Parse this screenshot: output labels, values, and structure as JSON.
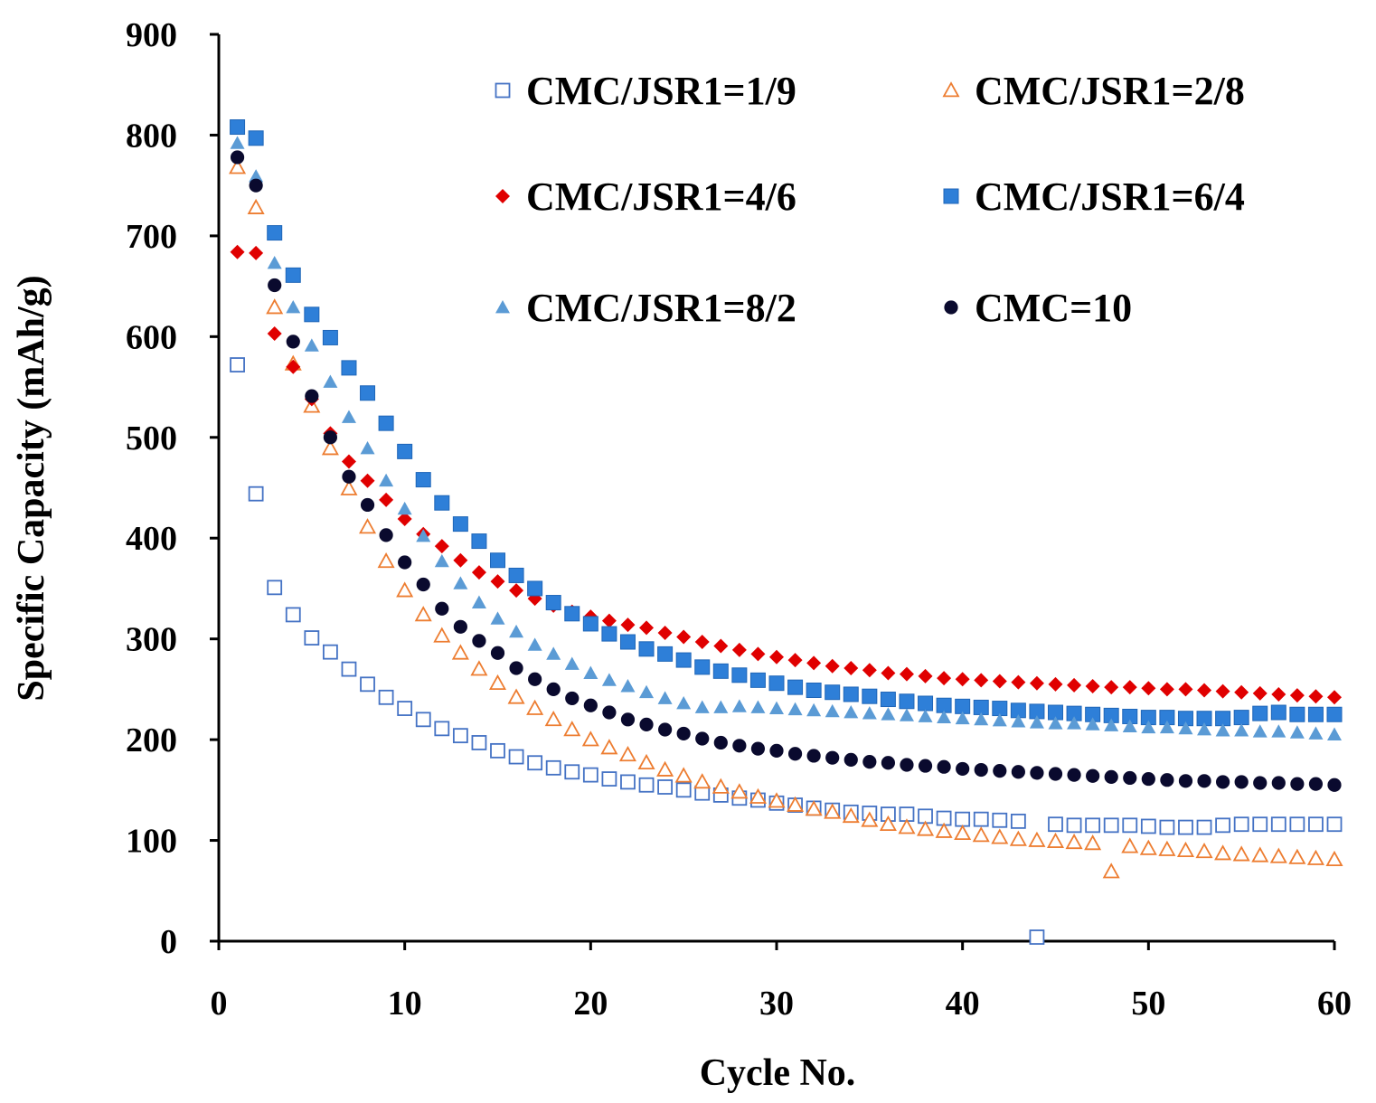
{
  "chart_data": {
    "type": "scatter",
    "title": "",
    "xlabel": "Cycle No.",
    "ylabel": "Specific Capacity (mAh/g)",
    "xlim": [
      0,
      60
    ],
    "ylim": [
      0,
      900
    ],
    "xticks": [
      0,
      10,
      20,
      30,
      40,
      50,
      60
    ],
    "yticks": [
      0,
      100,
      200,
      300,
      400,
      500,
      600,
      700,
      800,
      900
    ],
    "grid": false,
    "legend_position": "top-right",
    "series": [
      {
        "name": "CMC/JSR1=1/9",
        "marker": "square-open",
        "color": "#4472C4",
        "x": [
          1,
          2,
          3,
          4,
          5,
          6,
          7,
          8,
          9,
          10,
          11,
          12,
          13,
          14,
          15,
          16,
          17,
          18,
          19,
          20,
          21,
          22,
          23,
          24,
          25,
          26,
          27,
          28,
          29,
          30,
          31,
          32,
          33,
          34,
          35,
          36,
          37,
          38,
          39,
          40,
          41,
          42,
          43,
          44,
          45,
          46,
          47,
          48,
          49,
          50,
          51,
          52,
          53,
          54,
          55,
          56,
          57,
          58,
          59,
          60
        ],
        "y": [
          572,
          444,
          351,
          324,
          301,
          287,
          270,
          255,
          242,
          231,
          220,
          211,
          204,
          197,
          189,
          183,
          177,
          172,
          168,
          165,
          161,
          158,
          155,
          153,
          150,
          147,
          145,
          142,
          140,
          137,
          135,
          132,
          130,
          128,
          127,
          126,
          126,
          124,
          122,
          121,
          121,
          120,
          119,
          4,
          116,
          115,
          115,
          115,
          115,
          114,
          113,
          113,
          113,
          115,
          116,
          116,
          116,
          116,
          116,
          116
        ]
      },
      {
        "name": "CMC/JSR1=2/8",
        "marker": "triangle-open",
        "color": "#ED7D31",
        "x": [
          1,
          2,
          3,
          4,
          5,
          6,
          7,
          8,
          9,
          10,
          11,
          12,
          13,
          14,
          15,
          16,
          17,
          18,
          19,
          20,
          21,
          22,
          23,
          24,
          25,
          26,
          27,
          28,
          29,
          30,
          31,
          32,
          33,
          34,
          35,
          36,
          37,
          38,
          39,
          40,
          41,
          42,
          43,
          44,
          45,
          46,
          47,
          48,
          49,
          50,
          51,
          52,
          53,
          54,
          55,
          56,
          57,
          58,
          59,
          60
        ],
        "y": [
          768,
          728,
          629,
          573,
          531,
          489,
          449,
          411,
          377,
          348,
          324,
          303,
          286,
          270,
          256,
          242,
          231,
          220,
          210,
          200,
          192,
          185,
          177,
          170,
          164,
          158,
          153,
          148,
          143,
          139,
          135,
          131,
          128,
          124,
          120,
          116,
          113,
          111,
          109,
          107,
          105,
          103,
          101,
          100,
          99,
          98,
          97,
          69,
          94,
          92,
          91,
          90,
          89,
          87,
          86,
          85,
          84,
          83,
          82,
          81
        ]
      },
      {
        "name": "CMC/JSR1=4/6",
        "marker": "diamond",
        "color": "#E00000",
        "x": [
          1,
          2,
          3,
          4,
          5,
          6,
          7,
          8,
          9,
          10,
          11,
          12,
          13,
          14,
          15,
          16,
          17,
          18,
          19,
          20,
          21,
          22,
          23,
          24,
          25,
          26,
          27,
          28,
          29,
          30,
          31,
          32,
          33,
          34,
          35,
          36,
          37,
          38,
          39,
          40,
          41,
          42,
          43,
          44,
          45,
          46,
          47,
          48,
          49,
          50,
          51,
          52,
          53,
          54,
          55,
          56,
          57,
          58,
          59,
          60
        ],
        "y": [
          684,
          683,
          603,
          570,
          538,
          504,
          476,
          457,
          438,
          419,
          404,
          392,
          378,
          366,
          357,
          348,
          340,
          333,
          327,
          322,
          318,
          314,
          311,
          306,
          302,
          297,
          293,
          289,
          285,
          282,
          279,
          276,
          273,
          271,
          269,
          266,
          265,
          263,
          261,
          260,
          259,
          258,
          257,
          256,
          255,
          254,
          253,
          252,
          252,
          251,
          250,
          250,
          249,
          248,
          247,
          246,
          245,
          244,
          243,
          242
        ]
      },
      {
        "name": "CMC/JSR1=6/4",
        "marker": "square",
        "color": "#2E7FD8",
        "x": [
          1,
          2,
          3,
          4,
          5,
          6,
          7,
          8,
          9,
          10,
          11,
          12,
          13,
          14,
          15,
          16,
          17,
          18,
          19,
          20,
          21,
          22,
          23,
          24,
          25,
          26,
          27,
          28,
          29,
          30,
          31,
          32,
          33,
          34,
          35,
          36,
          37,
          38,
          39,
          40,
          41,
          42,
          43,
          44,
          45,
          46,
          47,
          48,
          49,
          50,
          51,
          52,
          53,
          54,
          55,
          56,
          57,
          58,
          59,
          60
        ],
        "y": [
          808,
          797,
          703,
          661,
          622,
          599,
          569,
          544,
          514,
          486,
          458,
          435,
          414,
          397,
          378,
          363,
          350,
          336,
          325,
          315,
          305,
          297,
          290,
          285,
          279,
          272,
          268,
          264,
          259,
          256,
          252,
          249,
          247,
          245,
          243,
          240,
          238,
          236,
          234,
          233,
          232,
          231,
          229,
          228,
          227,
          226,
          225,
          224,
          223,
          222,
          222,
          221,
          221,
          221,
          222,
          226,
          227,
          225,
          225,
          225
        ]
      },
      {
        "name": "CMC/JSR1=8/2",
        "marker": "triangle",
        "color": "#5B9BD5",
        "x": [
          1,
          2,
          3,
          4,
          5,
          6,
          7,
          8,
          9,
          10,
          11,
          12,
          13,
          14,
          15,
          16,
          17,
          18,
          19,
          20,
          21,
          22,
          23,
          24,
          25,
          26,
          27,
          28,
          29,
          30,
          31,
          32,
          33,
          34,
          35,
          36,
          37,
          38,
          39,
          40,
          41,
          42,
          43,
          44,
          45,
          46,
          47,
          48,
          49,
          50,
          51,
          52,
          53,
          54,
          55,
          56,
          57,
          58,
          59,
          60
        ],
        "y": [
          792,
          759,
          673,
          629,
          591,
          555,
          520,
          489,
          457,
          429,
          402,
          377,
          355,
          336,
          320,
          307,
          294,
          285,
          275,
          266,
          259,
          253,
          247,
          241,
          236,
          232,
          232,
          233,
          232,
          231,
          230,
          229,
          228,
          227,
          226,
          225,
          224,
          223,
          222,
          221,
          220,
          219,
          218,
          217,
          216,
          216,
          215,
          214,
          213,
          212,
          212,
          211,
          210,
          209,
          209,
          208,
          208,
          207,
          206,
          205
        ]
      },
      {
        "name": "CMC=10",
        "marker": "circle",
        "color": "#0A0A2E",
        "x": [
          1,
          2,
          3,
          4,
          5,
          6,
          7,
          8,
          9,
          10,
          11,
          12,
          13,
          14,
          15,
          16,
          17,
          18,
          19,
          20,
          21,
          22,
          23,
          24,
          25,
          26,
          27,
          28,
          29,
          30,
          31,
          32,
          33,
          34,
          35,
          36,
          37,
          38,
          39,
          40,
          41,
          42,
          43,
          44,
          45,
          46,
          47,
          48,
          49,
          50,
          51,
          52,
          53,
          54,
          55,
          56,
          57,
          58,
          59,
          60
        ],
        "y": [
          778,
          750,
          651,
          595,
          541,
          500,
          461,
          433,
          403,
          376,
          354,
          330,
          312,
          298,
          286,
          271,
          260,
          250,
          241,
          234,
          227,
          220,
          215,
          210,
          206,
          201,
          197,
          194,
          191,
          189,
          186,
          184,
          182,
          180,
          178,
          177,
          175,
          174,
          173,
          171,
          170,
          169,
          168,
          167,
          166,
          165,
          164,
          163,
          162,
          161,
          160,
          159,
          159,
          158,
          158,
          157,
          157,
          156,
          156,
          155
        ]
      }
    ]
  }
}
